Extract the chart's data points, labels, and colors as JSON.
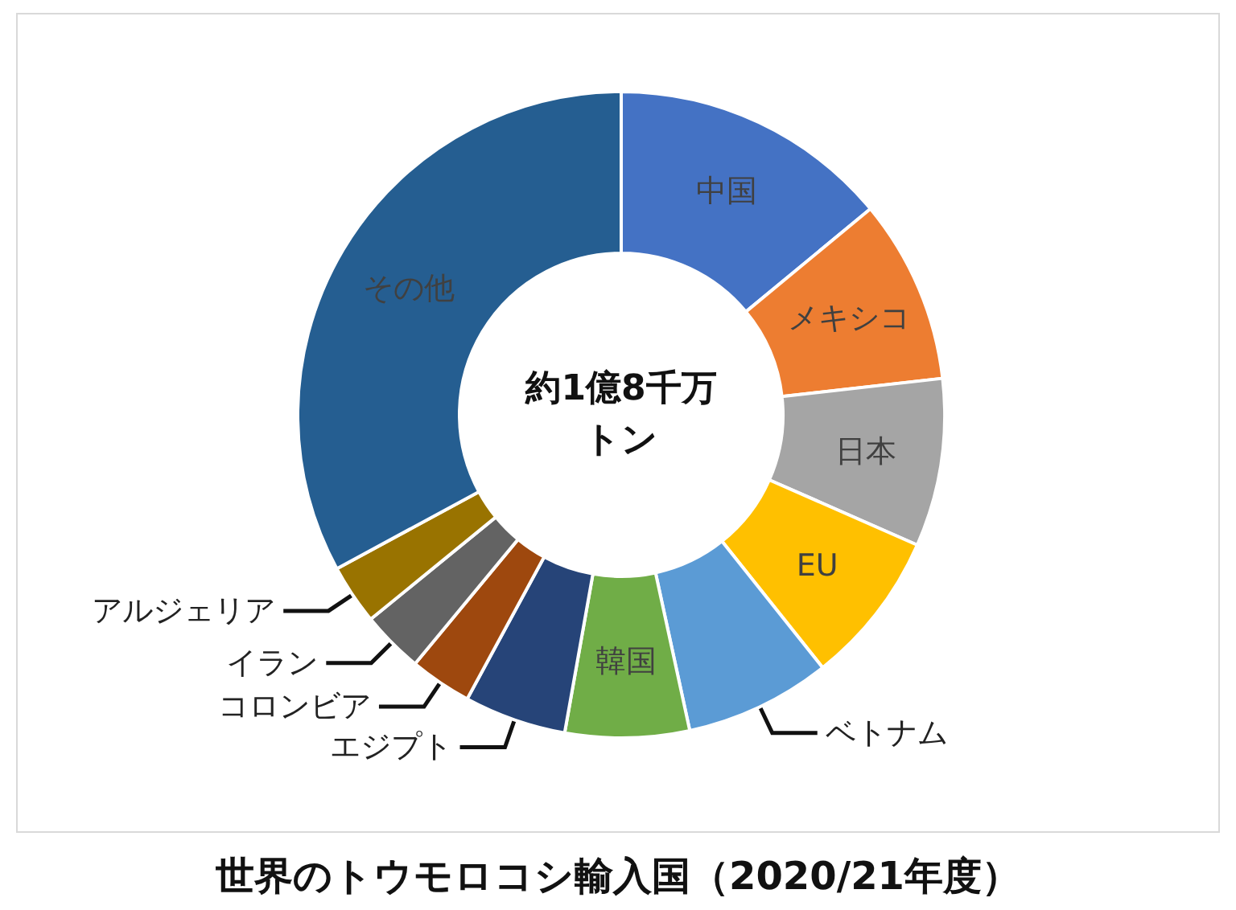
{
  "chart_data": {
    "type": "donut",
    "title": "世界のトウモロコシ輸入国（2020/21年度）",
    "categories": [
      "中国",
      "メキシコ",
      "日本",
      "EU",
      "ベトナム",
      "韓国",
      "エジプト",
      "コロンビア",
      "イラン",
      "アルジェリア",
      "その他"
    ],
    "values": [
      14.0,
      9.2,
      8.4,
      7.7,
      7.3,
      6.2,
      5.1,
      3.1,
      3.1,
      3.0,
      32.9
    ],
    "colors": [
      "#4472c4",
      "#ed7d31",
      "#a5a5a5",
      "#ffc000",
      "#5b9bd5",
      "#70ad47",
      "#264478",
      "#9e480e",
      "#636363",
      "#997300",
      "#255e91"
    ],
    "annotations": [
      "約1億8千万トン"
    ]
  }
}
